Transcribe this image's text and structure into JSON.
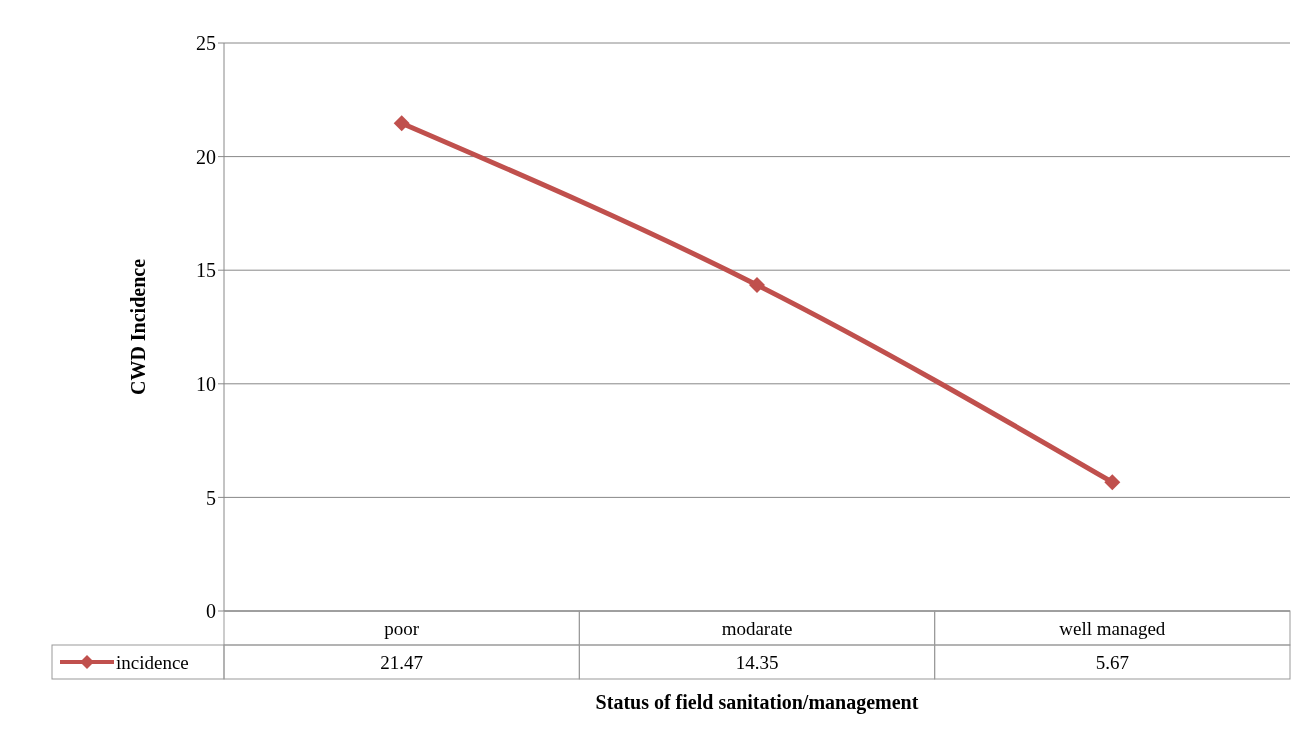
{
  "chart_data": {
    "type": "line",
    "xlabel": "Status of  field sanitation/management",
    "ylabel": "CWD Incidence",
    "categories": [
      "poor",
      "modarate",
      "well managed"
    ],
    "series": [
      {
        "name": "incidence",
        "color": "#c0504d",
        "values": [
          21.47,
          14.35,
          5.67
        ]
      }
    ],
    "ylim": [
      0,
      25
    ],
    "yticks": [
      0,
      5,
      10,
      15,
      20,
      25
    ],
    "grid": "y",
    "legend": "bottom",
    "marker": "diamond",
    "line_style": "solid",
    "data_labels": true
  }
}
